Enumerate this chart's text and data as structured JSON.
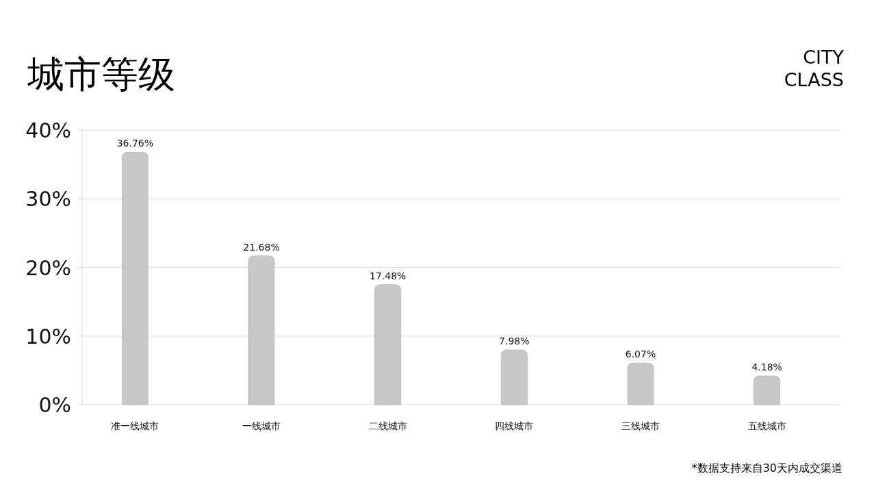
{
  "chart_data": {
    "type": "bar",
    "title": "城市等级",
    "subtitle": "CITY CLASS",
    "categories": [
      "准一线城市",
      "一线城市",
      "二线城市",
      "四线城市",
      "三线城市",
      "五线城市"
    ],
    "values": [
      36.76,
      21.68,
      17.48,
      7.98,
      6.07,
      4.18
    ],
    "value_labels": [
      "36.76%",
      "21.68%",
      "17.48%",
      "7.98%",
      "6.07%",
      "4.18%"
    ],
    "color": "#c8c8c8",
    "ylim": [
      0,
      40
    ],
    "yticks": [
      {
        "value": 0,
        "label": "0%"
      },
      {
        "value": 10,
        "label": "10%"
      },
      {
        "value": 20,
        "label": "20%"
      },
      {
        "value": 30,
        "label": "30%"
      },
      {
        "value": 40,
        "label": "40%"
      }
    ],
    "grid": "y",
    "annotations": [
      "*数据支持来自30天内成交渠道"
    ]
  }
}
